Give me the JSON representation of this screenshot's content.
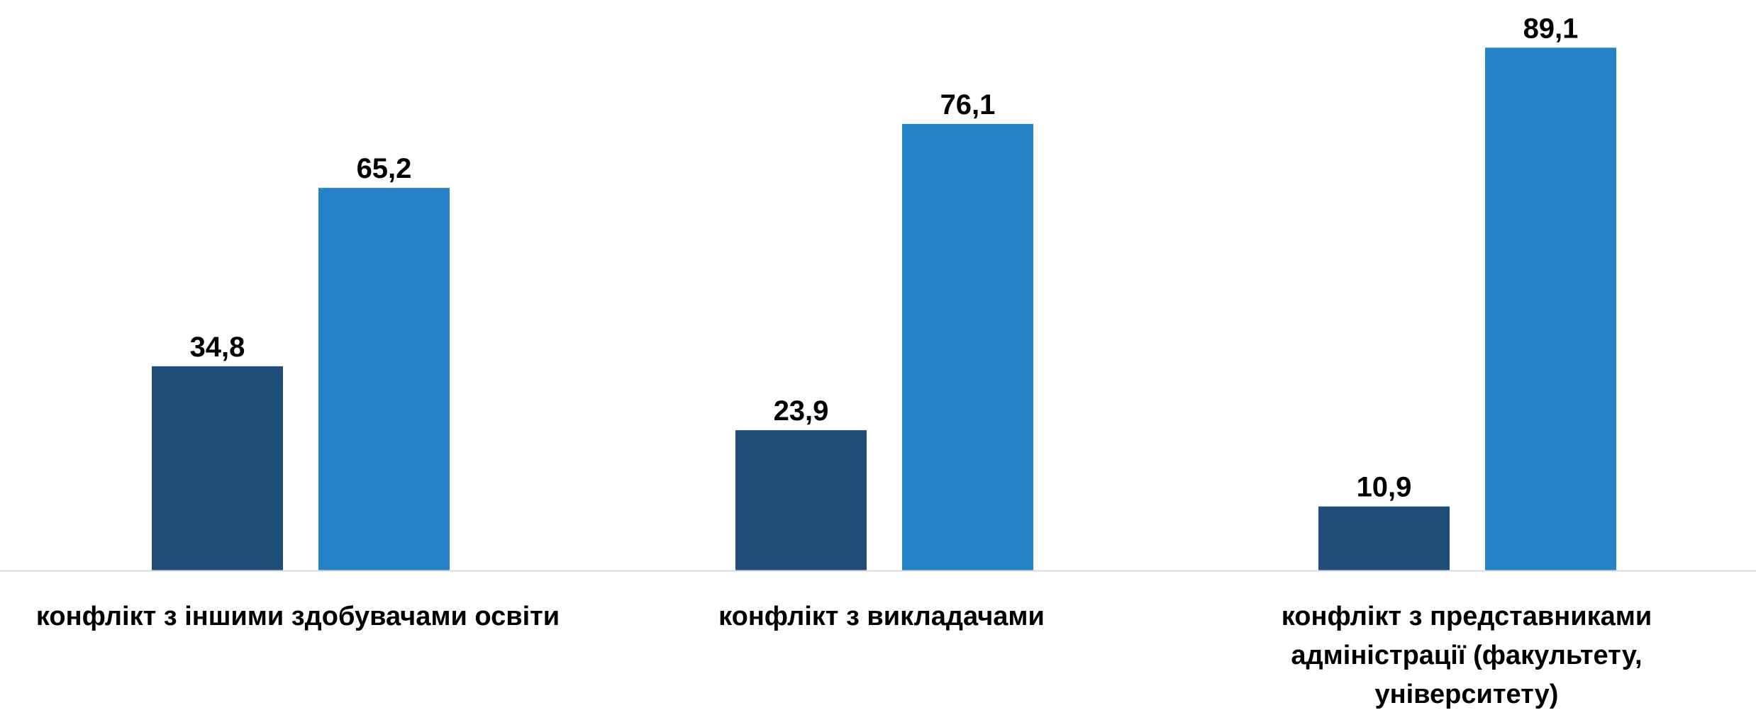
{
  "chart_data": {
    "type": "bar",
    "categories": [
      [
        "конфлікт з іншими здобувачами освіти"
      ],
      [
        "конфлікт з викладачами"
      ],
      [
        "конфлікт з представниками",
        "адміністрації (факультету,",
        "університету)"
      ]
    ],
    "series": [
      {
        "values": [
          34.8,
          23.9,
          10.9
        ],
        "labels": [
          "34,8",
          "23,9",
          "10,9"
        ],
        "color": "#1f4e79"
      },
      {
        "values": [
          65.2,
          76.1,
          89.1
        ],
        "labels": [
          "65,2",
          "76,1",
          "89,1"
        ],
        "color": "#2783c7"
      }
    ],
    "ylim": [
      0,
      100
    ],
    "grid": false,
    "legend": "none",
    "axis_color": "#d9d9d9"
  }
}
